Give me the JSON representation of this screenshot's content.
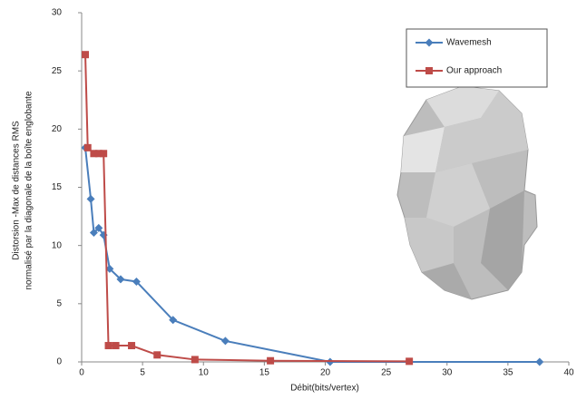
{
  "chart_data": {
    "type": "line",
    "x_label": "Débit(bits/vertex)",
    "y_label": [
      "Distorsion -Max de distances RMS",
      "normalisé par la diagonale de la boîte englobante"
    ],
    "xlim": [
      0,
      40
    ],
    "xticks": [
      0,
      5,
      10,
      15,
      20,
      25,
      30,
      35,
      40
    ],
    "ylim": [
      0,
      30
    ],
    "yticks": [
      0,
      5,
      10,
      15,
      20,
      25,
      30
    ],
    "legend": "upper right",
    "series": [
      {
        "name": "Wavemesh",
        "color": "#4a7ebb",
        "marker": "diamond",
        "x": [
          0.3,
          0.75,
          1.0,
          1.4,
          1.8,
          2.3,
          3.2,
          4.5,
          7.5,
          11.8,
          20.4,
          37.6
        ],
        "values": [
          18.4,
          14.0,
          11.1,
          11.5,
          10.9,
          8.0,
          7.1,
          6.9,
          3.6,
          1.8,
          0,
          0
        ]
      },
      {
        "name": "Our approach",
        "color": "#be4b48",
        "marker": "square",
        "x": [
          0.3,
          0.5,
          1.0,
          1.4,
          1.8,
          2.2,
          2.8,
          4.1,
          6.2,
          9.3,
          15.5,
          26.9
        ],
        "values": [
          26.4,
          18.4,
          17.9,
          17.9,
          17.9,
          1.4,
          1.4,
          1.4,
          0.6,
          0.2,
          0.1,
          0.05
        ]
      }
    ]
  }
}
